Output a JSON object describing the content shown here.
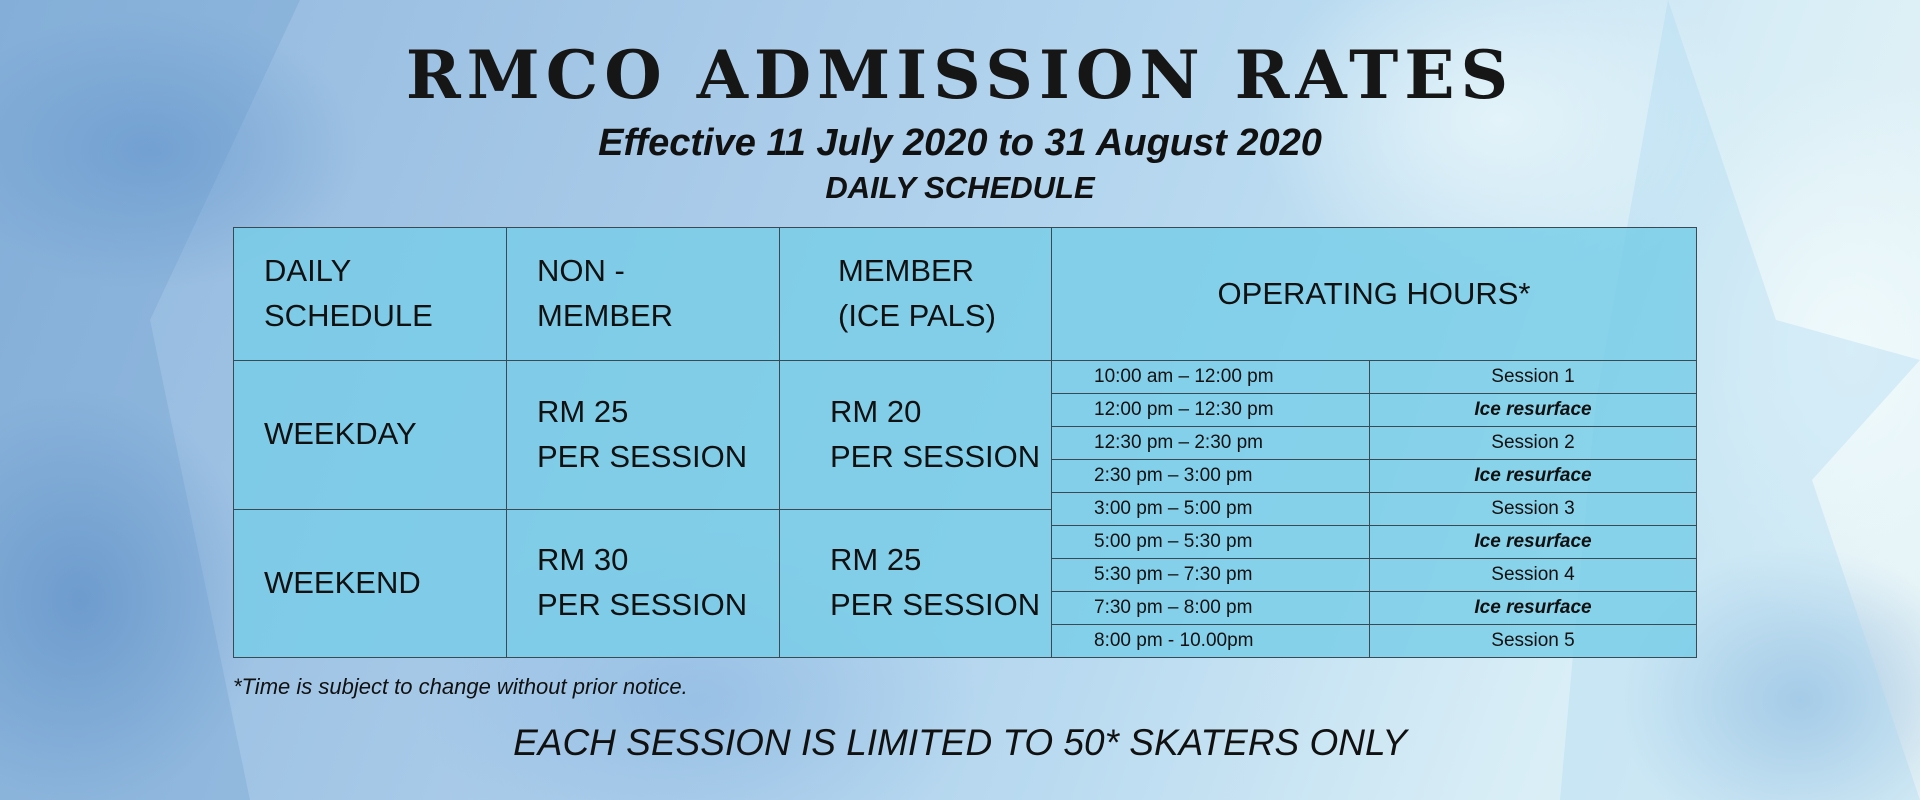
{
  "title": "RMCO ADMISSION RATES",
  "effective": "Effective 11 July 2020 to 31 August 2020",
  "subtitle": "DAILY SCHEDULE",
  "table": {
    "headers": {
      "daily_schedule": [
        "DAILY",
        "SCHEDULE"
      ],
      "non_member": [
        "NON -",
        "MEMBER"
      ],
      "member": [
        "MEMBER",
        "(ICE PALS)"
      ],
      "operating_hours": "OPERATING HOURS*"
    },
    "rows": [
      {
        "day": "WEEKDAY",
        "non_member": [
          "RM 25",
          "PER SESSION"
        ],
        "member": [
          "RM 20",
          "PER SESSION"
        ]
      },
      {
        "day": "WEEKEND",
        "non_member": [
          "RM 30",
          "PER SESSION"
        ],
        "member": [
          "RM 25",
          "PER SESSION"
        ]
      }
    ],
    "hours": [
      {
        "time": "10:00 am – 12:00 pm",
        "activity": "Session 1",
        "italic": false
      },
      {
        "time": "12:00 pm – 12:30 pm",
        "activity": "Ice resurface",
        "italic": true
      },
      {
        "time": "12:30 pm – 2:30 pm",
        "activity": "Session 2",
        "italic": false
      },
      {
        "time": "2:30 pm – 3:00 pm",
        "activity": "Ice resurface",
        "italic": true
      },
      {
        "time": "3:00 pm – 5:00 pm",
        "activity": "Session 3",
        "italic": false
      },
      {
        "time": "5:00 pm – 5:30 pm",
        "activity": "Ice resurface",
        "italic": true
      },
      {
        "time": "5:30 pm – 7:30 pm",
        "activity": "Session 4",
        "italic": false
      },
      {
        "time": "7:30 pm – 8:00 pm",
        "activity": "Ice resurface",
        "italic": true
      },
      {
        "time": "8:00 pm - 10.00pm",
        "activity": "Session 5",
        "italic": false
      }
    ]
  },
  "footnote": "*Time is subject to change without prior notice.",
  "limit_notice": "EACH SESSION IS LIMITED TO 50* SKATERS ONLY",
  "colors": {
    "table_fill": "#7fcfe8",
    "text": "#111111"
  }
}
